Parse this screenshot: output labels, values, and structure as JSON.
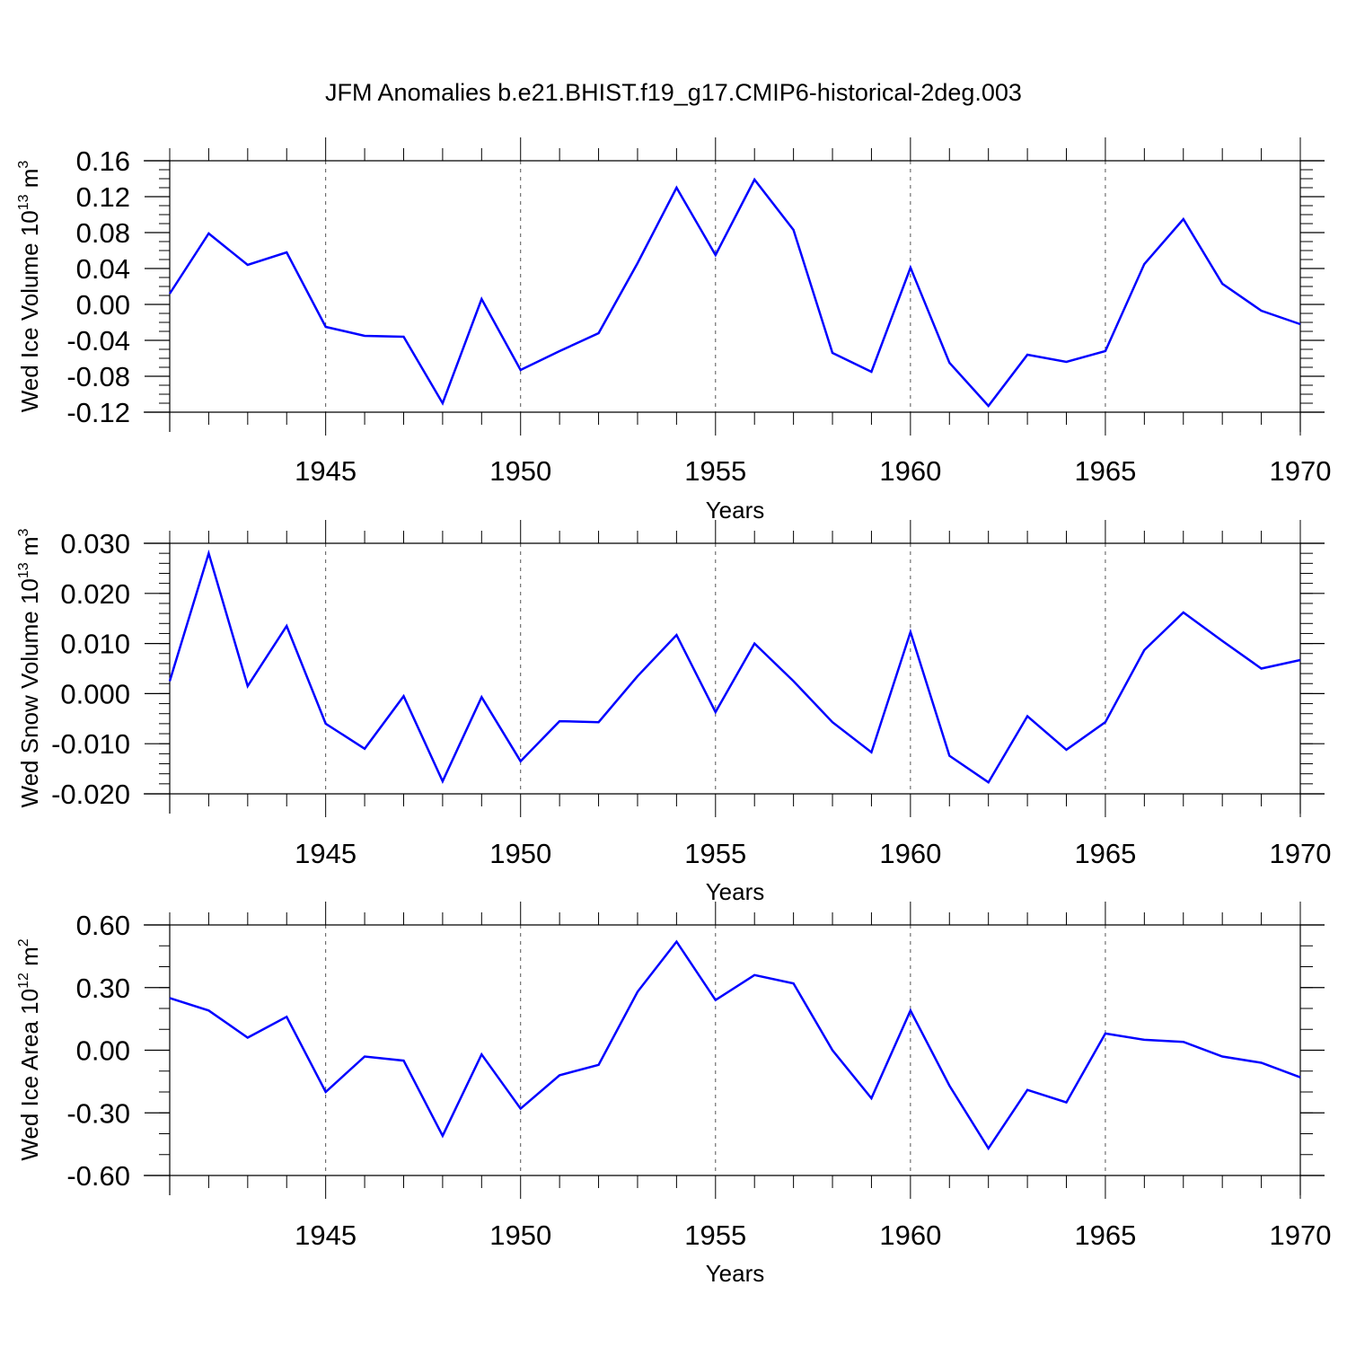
{
  "figure": {
    "title": "JFM Anomalies b.e21.BHIST.f19_g17.CMIP6-historical-2deg.003"
  },
  "style": {
    "line_color": "#0000ff",
    "axis_color": "#000000",
    "grid_color": "#555555"
  },
  "chart_data": [
    {
      "type": "line",
      "ylabel": {
        "text": "Wed Ice Volume 10",
        "sup": "13",
        "unit": " m",
        "unit_sup": "3"
      },
      "xlabel": "Years",
      "xlim": [
        1941,
        1970
      ],
      "ylim": [
        -0.12,
        0.16
      ],
      "yticks": [
        -0.12,
        -0.08,
        -0.04,
        0.0,
        0.04,
        0.08,
        0.12,
        0.16
      ],
      "ytick_labels": [
        "-0.12",
        "-0.08",
        "-0.04",
        "0.00",
        "0.04",
        "0.08",
        "0.12",
        "0.16"
      ],
      "yminor_step": 0.01,
      "xticks": [
        1945,
        1950,
        1955,
        1960,
        1965,
        1970
      ],
      "xtick_labels": [
        "1945",
        "1950",
        "1955",
        "1960",
        "1965",
        "1970"
      ],
      "grid": "dashed vertical at labeled years",
      "x": [
        1941,
        1942,
        1943,
        1944,
        1945,
        1946,
        1947,
        1948,
        1949,
        1950,
        1951,
        1952,
        1953,
        1954,
        1955,
        1956,
        1957,
        1958,
        1959,
        1960,
        1961,
        1962,
        1963,
        1964,
        1965,
        1966,
        1967,
        1968,
        1969,
        1970
      ],
      "values": [
        0.012,
        0.079,
        0.044,
        0.058,
        -0.025,
        -0.035,
        -0.036,
        -0.11,
        0.006,
        -0.073,
        -0.052,
        -0.032,
        0.046,
        0.13,
        0.055,
        0.139,
        0.083,
        -0.054,
        -0.075,
        0.041,
        -0.065,
        -0.113,
        -0.056,
        -0.064,
        -0.052,
        0.045,
        0.095,
        0.023,
        -0.007,
        -0.022
      ]
    },
    {
      "type": "line",
      "ylabel": {
        "text": "Wed Snow Volume 10",
        "sup": "13",
        "unit": " m",
        "unit_sup": "3"
      },
      "xlabel": "Years",
      "xlim": [
        1941,
        1970
      ],
      "ylim": [
        -0.02,
        0.03
      ],
      "yticks": [
        -0.02,
        -0.01,
        0.0,
        0.01,
        0.02,
        0.03
      ],
      "ytick_labels": [
        "-0.020",
        "-0.010",
        "0.000",
        "0.010",
        "0.020",
        "0.030"
      ],
      "yminor_step": 0.002,
      "xticks": [
        1945,
        1950,
        1955,
        1960,
        1965,
        1970
      ],
      "xtick_labels": [
        "1945",
        "1950",
        "1955",
        "1960",
        "1965",
        "1970"
      ],
      "grid": "dashed vertical at labeled years",
      "x": [
        1941,
        1942,
        1943,
        1944,
        1945,
        1946,
        1947,
        1948,
        1949,
        1950,
        1951,
        1952,
        1953,
        1954,
        1955,
        1956,
        1957,
        1958,
        1959,
        1960,
        1961,
        1962,
        1963,
        1964,
        1965,
        1966,
        1967,
        1968,
        1969,
        1970
      ],
      "values": [
        0.0025,
        0.028,
        0.0015,
        0.0135,
        -0.006,
        -0.011,
        -0.0005,
        -0.0175,
        -0.0007,
        -0.0135,
        -0.0055,
        -0.0057,
        0.0035,
        0.0117,
        -0.0037,
        0.01,
        0.0025,
        -0.0057,
        -0.0117,
        0.0123,
        -0.0124,
        -0.0177,
        -0.0045,
        -0.0112,
        -0.0057,
        0.0087,
        0.0162,
        0.0105,
        0.005,
        0.0067
      ]
    },
    {
      "type": "line",
      "ylabel": {
        "text": "Wed Ice Area 10",
        "sup": "12",
        "unit": " m",
        "unit_sup": "2"
      },
      "xlabel": "Years",
      "xlim": [
        1941,
        1970
      ],
      "ylim": [
        -0.6,
        0.6
      ],
      "yticks": [
        -0.6,
        -0.3,
        0.0,
        0.3,
        0.6
      ],
      "ytick_labels": [
        "-0.60",
        "-0.30",
        "0.00",
        "0.30",
        "0.60"
      ],
      "yminor_step": 0.1,
      "xticks": [
        1945,
        1950,
        1955,
        1960,
        1965,
        1970
      ],
      "xtick_labels": [
        "1945",
        "1950",
        "1955",
        "1960",
        "1965",
        "1970"
      ],
      "grid": "dashed vertical at labeled years",
      "x": [
        1941,
        1942,
        1943,
        1944,
        1945,
        1946,
        1947,
        1948,
        1949,
        1950,
        1951,
        1952,
        1953,
        1954,
        1955,
        1956,
        1957,
        1958,
        1959,
        1960,
        1961,
        1962,
        1963,
        1964,
        1965,
        1966,
        1967,
        1968,
        1969,
        1970
      ],
      "values": [
        0.25,
        0.19,
        0.06,
        0.16,
        -0.2,
        -0.03,
        -0.05,
        -0.41,
        -0.02,
        -0.28,
        -0.12,
        -0.07,
        0.28,
        0.52,
        0.24,
        0.36,
        0.32,
        0.0,
        -0.23,
        0.19,
        -0.17,
        -0.47,
        -0.19,
        -0.25,
        0.08,
        0.05,
        0.04,
        -0.03,
        -0.06,
        -0.13
      ]
    }
  ]
}
